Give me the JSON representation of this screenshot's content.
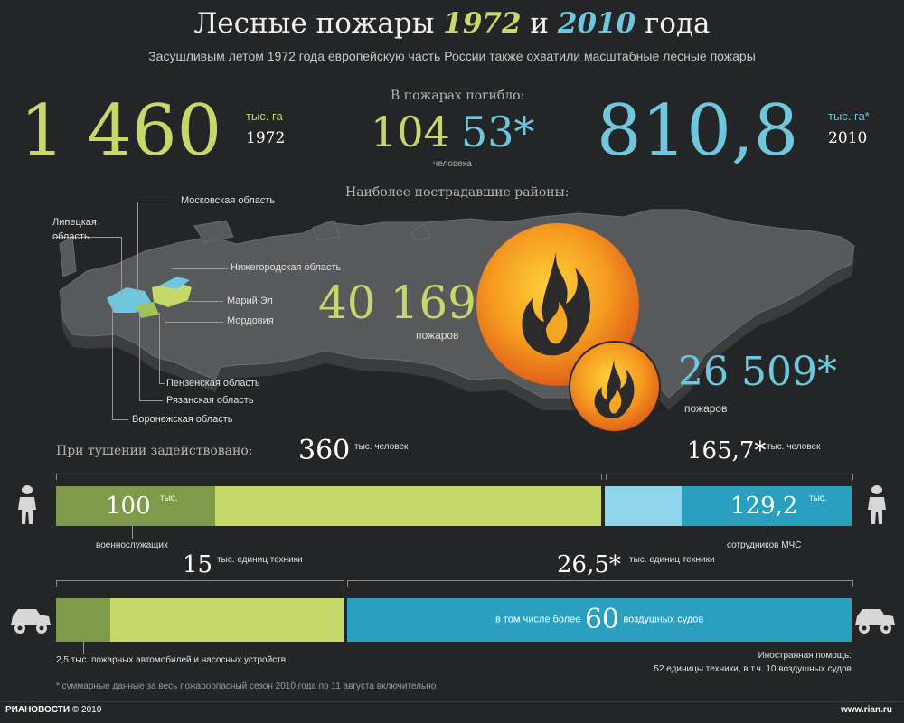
{
  "header": {
    "title_pre": "Лесные пожары",
    "year1": "1972",
    "title_mid": "и",
    "year2": "2010",
    "title_post": "года",
    "subtitle": "Засушливым летом 1972 года европейскую часть России также охватили масштабные лесные пожары"
  },
  "area": {
    "value_1972": "1 460",
    "unit_1972": "тыс. га",
    "year_1972": "1972",
    "value_2010": "810,8",
    "unit_2010": "тыс. га*",
    "year_2010": "2010"
  },
  "deaths": {
    "label": "В пожарах погибло:",
    "value_1972": "104",
    "value_2010": "53*",
    "unit": "человека"
  },
  "map": {
    "title": "Наиболее пострадавшие районы:",
    "regions": {
      "lipetsk": "Липецкая область",
      "moscow": "Московская область",
      "nizhny": "Нижегородская область",
      "mari": "Марий Эл",
      "mordovia": "Мордовия",
      "penza": "Пензенская область",
      "ryazan": "Рязанская область",
      "voronezh": "Воронежская область"
    }
  },
  "fires": {
    "value_1972": "40 169",
    "label_1972": "пожаров",
    "value_2010": "26 509*",
    "label_2010": "пожаров"
  },
  "personnel": {
    "title": "При тушении задействовано:",
    "total_1972": "360",
    "total_1972_unit": "тыс. человек",
    "total_2010": "165,7*",
    "total_2010_unit": "тыс. человек",
    "military_value": "100",
    "military_unit": "тыс.",
    "military_label": "военнослужащих",
    "mchs_value": "129,2",
    "mchs_unit": "тыс.",
    "mchs_label": "сотрудников МЧС"
  },
  "equipment": {
    "total_1972": "15",
    "total_1972_unit": "тыс. единиц техники",
    "total_2010": "26,5*",
    "total_2010_unit": "тыс. единиц техники",
    "aircraft_pre": "в том числе более",
    "aircraft_value": "60",
    "aircraft_post": "воздушных судов",
    "fire_trucks": "2,5 тыс. пожарных автомобилей и насосных устройств",
    "foreign_title": "Иностранная помощь:",
    "foreign_text": "52 единицы техники, в т.ч. 10 воздушных судов"
  },
  "footnote": "* суммарные данные за весь пожароопасный сезон 2010 года по 11 августа включительно",
  "footer": {
    "brand": "РИАНОВОСТИ",
    "copyright": "© 2010",
    "site": "www.rian.ru"
  },
  "colors": {
    "background": "#232526",
    "lime": "#c6d86a",
    "lime_dark": "#7f9a4a",
    "cyan": "#6ec6df",
    "cyan_dark": "#2a9fbf",
    "fire_orange": "#f07f1e"
  },
  "icons": [
    "soldier-icon",
    "fire-truck-icon",
    "flame-icon"
  ]
}
